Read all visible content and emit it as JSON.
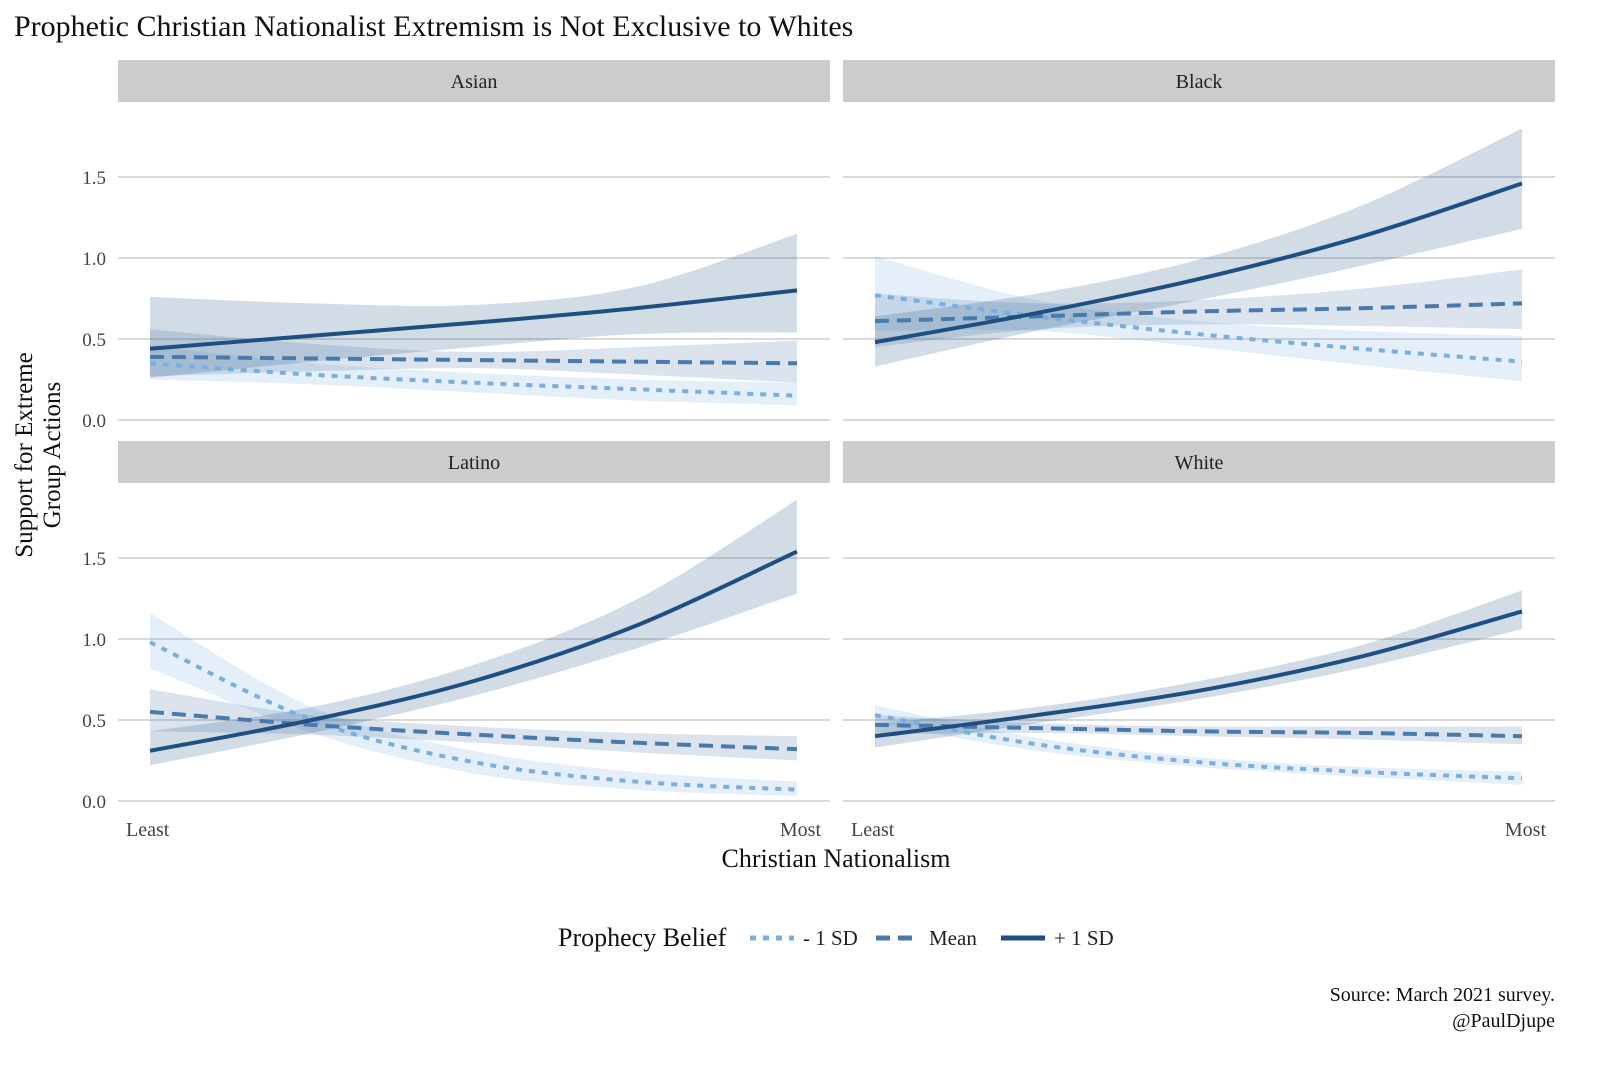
{
  "chart_data": {
    "type": "line",
    "title": "Prophetic Christian Nationalist Extremism is Not Exclusive to Whites",
    "xlabel": "Christian Nationalism",
    "ylabel": [
      "Support for Extreme",
      "Group Actions"
    ],
    "x_tick_labels": [
      "Least",
      "Most"
    ],
    "x": [
      0,
      0.25,
      0.5,
      0.75,
      1
    ],
    "ylim": [
      0,
      1.8
    ],
    "y_ticks": [
      0,
      0.5,
      1,
      1.5
    ],
    "y_tick_labels": [
      "0.0",
      "0.5",
      "1.0",
      "1.5"
    ],
    "legend": {
      "title": "Prophecy Belief",
      "placement": "bottom",
      "entries": [
        "- 1 SD",
        "Mean",
        "+ 1 SD"
      ]
    },
    "colors": {
      "- 1 SD": "#7aaee0",
      "Mean": "#4a7aab",
      "+ 1 SD": "#1f4e80"
    },
    "caption": [
      "Source: March 2021 survey.",
      "@PaulDjupe"
    ],
    "panels": [
      {
        "name": "Asian",
        "series": [
          {
            "name": "- 1 SD",
            "values": [
              0.35,
              0.28,
              0.23,
              0.19,
              0.15
            ],
            "lower": [
              0.25,
              0.22,
              0.17,
              0.12,
              0.09
            ],
            "upper": [
              0.46,
              0.35,
              0.29,
              0.25,
              0.23
            ]
          },
          {
            "name": "Mean",
            "values": [
              0.39,
              0.38,
              0.37,
              0.36,
              0.35
            ],
            "lower": [
              0.27,
              0.3,
              0.32,
              0.28,
              0.23
            ],
            "upper": [
              0.56,
              0.47,
              0.42,
              0.45,
              0.49
            ]
          },
          {
            "name": "+ 1 SD",
            "values": [
              0.44,
              0.52,
              0.6,
              0.69,
              0.8
            ],
            "lower": [
              0.26,
              0.36,
              0.45,
              0.53,
              0.54
            ],
            "upper": [
              0.76,
              0.72,
              0.71,
              0.82,
              1.15
            ]
          }
        ]
      },
      {
        "name": "Black",
        "series": [
          {
            "name": "- 1 SD",
            "values": [
              0.77,
              0.64,
              0.53,
              0.44,
              0.36
            ],
            "lower": [
              0.55,
              0.55,
              0.45,
              0.34,
              0.24
            ],
            "upper": [
              1.01,
              0.74,
              0.61,
              0.55,
              0.52
            ]
          },
          {
            "name": "Mean",
            "values": [
              0.61,
              0.64,
              0.67,
              0.69,
              0.72
            ],
            "lower": [
              0.45,
              0.56,
              0.59,
              0.58,
              0.56
            ],
            "upper": [
              0.78,
              0.72,
              0.74,
              0.81,
              0.93
            ]
          },
          {
            "name": "+ 1 SD",
            "values": [
              0.48,
              0.66,
              0.87,
              1.13,
              1.46
            ],
            "lower": [
              0.33,
              0.55,
              0.74,
              0.95,
              1.18
            ],
            "upper": [
              0.64,
              0.78,
              0.99,
              1.32,
              1.8
            ]
          }
        ]
      },
      {
        "name": "Latino",
        "series": [
          {
            "name": "- 1 SD",
            "values": [
              0.98,
              0.5,
              0.24,
              0.12,
              0.07
            ],
            "lower": [
              0.82,
              0.42,
              0.17,
              0.07,
              0.03
            ],
            "upper": [
              1.16,
              0.58,
              0.31,
              0.18,
              0.12
            ]
          },
          {
            "name": "Mean",
            "values": [
              0.55,
              0.47,
              0.41,
              0.36,
              0.32
            ],
            "lower": [
              0.43,
              0.41,
              0.36,
              0.3,
              0.25
            ],
            "upper": [
              0.69,
              0.53,
              0.46,
              0.42,
              0.4
            ]
          },
          {
            "name": "+ 1 SD",
            "values": [
              0.31,
              0.5,
              0.74,
              1.08,
              1.54
            ],
            "lower": [
              0.22,
              0.42,
              0.65,
              0.94,
              1.28
            ],
            "upper": [
              0.43,
              0.58,
              0.84,
              1.24,
              1.86
            ]
          }
        ]
      },
      {
        "name": "White",
        "series": [
          {
            "name": "- 1 SD",
            "values": [
              0.53,
              0.35,
              0.24,
              0.18,
              0.14
            ],
            "lower": [
              0.48,
              0.31,
              0.21,
              0.15,
              0.1
            ],
            "upper": [
              0.59,
              0.39,
              0.27,
              0.21,
              0.18
            ]
          },
          {
            "name": "Mean",
            "values": [
              0.47,
              0.45,
              0.43,
              0.42,
              0.4
            ],
            "lower": [
              0.41,
              0.42,
              0.4,
              0.38,
              0.35
            ],
            "upper": [
              0.53,
              0.48,
              0.46,
              0.46,
              0.46
            ]
          },
          {
            "name": "+ 1 SD",
            "values": [
              0.4,
              0.53,
              0.68,
              0.89,
              1.17
            ],
            "lower": [
              0.33,
              0.48,
              0.63,
              0.82,
              1.06
            ],
            "upper": [
              0.48,
              0.58,
              0.74,
              0.96,
              1.3
            ]
          }
        ]
      }
    ]
  }
}
